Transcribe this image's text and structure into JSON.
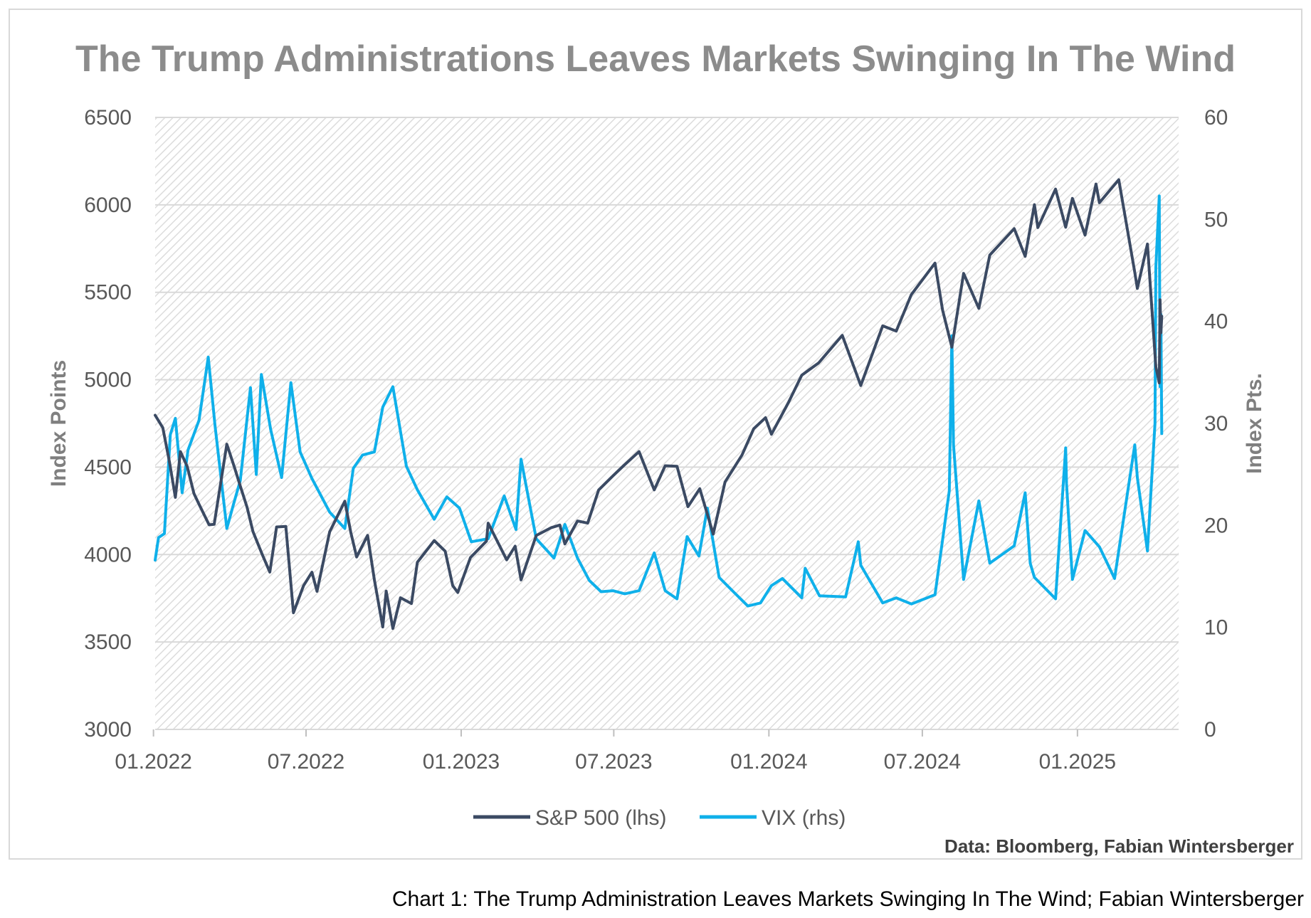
{
  "chart_data": {
    "type": "line",
    "title": "The Trump Administrations Leaves Markets Swinging In The Wind",
    "ylabel": "Index Points",
    "y2label": "Index Pts.",
    "ylim": [
      3000,
      6500
    ],
    "y2lim": [
      0,
      60
    ],
    "yticks": [
      "3000",
      "3500",
      "4000",
      "4500",
      "5000",
      "5500",
      "6000",
      "6500"
    ],
    "y2ticks": [
      "0",
      "10",
      "20",
      "30",
      "40",
      "50",
      "60"
    ],
    "xticks": [
      "01.2022",
      "07.2022",
      "01.2023",
      "07.2023",
      "01.2024",
      "07.2024",
      "01.2025"
    ],
    "x_start": "2022-01-03",
    "x_end": "2025-04-11",
    "grid": "horizontal",
    "legend_position": "bottom",
    "source_note": "Data: Bloomberg, Fabian Wintersberger",
    "colors": {
      "sp500": "#3b4a63",
      "vix": "#0fb0ea",
      "grid": "#d9d9d9",
      "hatch": "#dcdcdc"
    },
    "series": [
      {
        "name": "S&P 500 (lhs)",
        "axis": "left",
        "points": [
          [
            "2022-01-03",
            4797
          ],
          [
            "2022-01-12",
            4726
          ],
          [
            "2022-01-20",
            4530
          ],
          [
            "2022-01-27",
            4327
          ],
          [
            "2022-02-02",
            4589
          ],
          [
            "2022-02-10",
            4504
          ],
          [
            "2022-02-18",
            4349
          ],
          [
            "2022-02-24",
            4288
          ],
          [
            "2022-03-08",
            4170
          ],
          [
            "2022-03-14",
            4173
          ],
          [
            "2022-03-29",
            4631
          ],
          [
            "2022-04-07",
            4500
          ],
          [
            "2022-04-14",
            4392
          ],
          [
            "2022-04-22",
            4271
          ],
          [
            "2022-04-29",
            4132
          ],
          [
            "2022-05-10",
            4001
          ],
          [
            "2022-05-19",
            3900
          ],
          [
            "2022-05-27",
            4158
          ],
          [
            "2022-06-07",
            4161
          ],
          [
            "2022-06-16",
            3667
          ],
          [
            "2022-06-28",
            3822
          ],
          [
            "2022-07-08",
            3899
          ],
          [
            "2022-07-14",
            3790
          ],
          [
            "2022-07-29",
            4130
          ],
          [
            "2022-08-16",
            4305
          ],
          [
            "2022-08-23",
            4128
          ],
          [
            "2022-08-30",
            3986
          ],
          [
            "2022-09-12",
            4110
          ],
          [
            "2022-09-20",
            3856
          ],
          [
            "2022-09-30",
            3586
          ],
          [
            "2022-10-04",
            3791
          ],
          [
            "2022-10-12",
            3577
          ],
          [
            "2022-10-21",
            3753
          ],
          [
            "2022-11-03",
            3720
          ],
          [
            "2022-11-10",
            3956
          ],
          [
            "2022-11-30",
            4080
          ],
          [
            "2022-12-13",
            4019
          ],
          [
            "2022-12-22",
            3822
          ],
          [
            "2022-12-28",
            3783
          ],
          [
            "2023-01-12",
            3983
          ],
          [
            "2023-01-31",
            4077
          ],
          [
            "2023-02-02",
            4180
          ],
          [
            "2023-02-24",
            3970
          ],
          [
            "2023-03-06",
            4048
          ],
          [
            "2023-03-13",
            3855
          ],
          [
            "2023-03-31",
            4109
          ],
          [
            "2023-04-18",
            4154
          ],
          [
            "2023-04-28",
            4169
          ],
          [
            "2023-05-04",
            4061
          ],
          [
            "2023-05-19",
            4192
          ],
          [
            "2023-05-31",
            4180
          ],
          [
            "2023-06-13",
            4369
          ],
          [
            "2023-06-30",
            4450
          ],
          [
            "2023-07-13",
            4510
          ],
          [
            "2023-07-31",
            4589
          ],
          [
            "2023-08-18",
            4370
          ],
          [
            "2023-08-31",
            4508
          ],
          [
            "2023-09-14",
            4505
          ],
          [
            "2023-09-27",
            4274
          ],
          [
            "2023-10-11",
            4377
          ],
          [
            "2023-10-27",
            4117
          ],
          [
            "2023-11-10",
            4415
          ],
          [
            "2023-11-30",
            4568
          ],
          [
            "2023-12-14",
            4720
          ],
          [
            "2023-12-28",
            4783
          ],
          [
            "2024-01-04",
            4688
          ],
          [
            "2024-01-24",
            4868
          ],
          [
            "2024-02-09",
            5026
          ],
          [
            "2024-02-29",
            5096
          ],
          [
            "2024-03-28",
            5254
          ],
          [
            "2024-04-19",
            4967
          ],
          [
            "2024-05-15",
            5308
          ],
          [
            "2024-05-31",
            5278
          ],
          [
            "2024-06-18",
            5487
          ],
          [
            "2024-07-16",
            5667
          ],
          [
            "2024-07-25",
            5399
          ],
          [
            "2024-08-05",
            5186
          ],
          [
            "2024-08-19",
            5608
          ],
          [
            "2024-09-06",
            5408
          ],
          [
            "2024-09-19",
            5713
          ],
          [
            "2024-10-18",
            5864
          ],
          [
            "2024-10-31",
            5705
          ],
          [
            "2024-11-11",
            6001
          ],
          [
            "2024-11-15",
            5870
          ],
          [
            "2024-12-06",
            6090
          ],
          [
            "2024-12-18",
            5872
          ],
          [
            "2024-12-26",
            6037
          ],
          [
            "2025-01-10",
            5827
          ],
          [
            "2025-01-23",
            6119
          ],
          [
            "2025-01-27",
            6012
          ],
          [
            "2025-02-19",
            6144
          ],
          [
            "2025-03-10",
            5614
          ],
          [
            "2025-03-13",
            5522
          ],
          [
            "2025-03-25",
            5776
          ],
          [
            "2025-04-04",
            5074
          ],
          [
            "2025-04-08",
            4982
          ],
          [
            "2025-04-09",
            5457
          ],
          [
            "2025-04-10",
            5268
          ],
          [
            "2025-04-11",
            5363
          ]
        ]
      },
      {
        "name": "VIX (rhs)",
        "axis": "right",
        "points": [
          [
            "2022-01-03",
            16.6
          ],
          [
            "2022-01-07",
            18.8
          ],
          [
            "2022-01-14",
            19.2
          ],
          [
            "2022-01-21",
            28.9
          ],
          [
            "2022-01-27",
            30.5
          ],
          [
            "2022-02-04",
            23.2
          ],
          [
            "2022-02-11",
            27.4
          ],
          [
            "2022-02-24",
            30.3
          ],
          [
            "2022-03-07",
            36.5
          ],
          [
            "2022-03-15",
            29.8
          ],
          [
            "2022-03-29",
            19.7
          ],
          [
            "2022-04-06",
            22.1
          ],
          [
            "2022-04-14",
            24.4
          ],
          [
            "2022-04-26",
            33.5
          ],
          [
            "2022-05-03",
            25.0
          ],
          [
            "2022-05-09",
            34.8
          ],
          [
            "2022-05-20",
            29.4
          ],
          [
            "2022-06-02",
            24.7
          ],
          [
            "2022-06-13",
            34.0
          ],
          [
            "2022-06-24",
            27.2
          ],
          [
            "2022-07-08",
            24.6
          ],
          [
            "2022-07-29",
            21.3
          ],
          [
            "2022-08-16",
            19.7
          ],
          [
            "2022-08-26",
            25.6
          ],
          [
            "2022-09-06",
            26.9
          ],
          [
            "2022-09-20",
            27.2
          ],
          [
            "2022-09-30",
            31.6
          ],
          [
            "2022-10-12",
            33.6
          ],
          [
            "2022-10-28",
            25.8
          ],
          [
            "2022-11-10",
            23.5
          ],
          [
            "2022-11-30",
            20.6
          ],
          [
            "2022-12-15",
            22.8
          ],
          [
            "2022-12-30",
            21.7
          ],
          [
            "2023-01-13",
            18.4
          ],
          [
            "2023-02-02",
            18.7
          ],
          [
            "2023-02-21",
            22.9
          ],
          [
            "2023-03-07",
            19.6
          ],
          [
            "2023-03-13",
            26.5
          ],
          [
            "2023-03-31",
            18.7
          ],
          [
            "2023-04-21",
            16.8
          ],
          [
            "2023-05-04",
            20.1
          ],
          [
            "2023-05-19",
            16.8
          ],
          [
            "2023-06-02",
            14.6
          ],
          [
            "2023-06-16",
            13.5
          ],
          [
            "2023-06-30",
            13.6
          ],
          [
            "2023-07-14",
            13.3
          ],
          [
            "2023-07-31",
            13.6
          ],
          [
            "2023-08-18",
            17.3
          ],
          [
            "2023-08-31",
            13.6
          ],
          [
            "2023-09-14",
            12.8
          ],
          [
            "2023-09-26",
            18.9
          ],
          [
            "2023-10-10",
            17.0
          ],
          [
            "2023-10-20",
            21.7
          ],
          [
            "2023-11-03",
            14.9
          ],
          [
            "2023-11-21",
            13.4
          ],
          [
            "2023-12-07",
            12.1
          ],
          [
            "2023-12-22",
            12.4
          ],
          [
            "2024-01-04",
            14.1
          ],
          [
            "2024-01-17",
            14.8
          ],
          [
            "2024-02-09",
            12.9
          ],
          [
            "2024-02-13",
            15.8
          ],
          [
            "2024-03-01",
            13.1
          ],
          [
            "2024-04-01",
            13.0
          ],
          [
            "2024-04-16",
            18.4
          ],
          [
            "2024-04-19",
            16.1
          ],
          [
            "2024-05-15",
            12.4
          ],
          [
            "2024-05-31",
            12.9
          ],
          [
            "2024-06-18",
            12.3
          ],
          [
            "2024-07-16",
            13.2
          ],
          [
            "2024-07-24",
            18.0
          ],
          [
            "2024-08-02",
            23.4
          ],
          [
            "2024-08-05",
            38.6
          ],
          [
            "2024-08-07",
            27.9
          ],
          [
            "2024-08-19",
            14.7
          ],
          [
            "2024-09-06",
            22.4
          ],
          [
            "2024-09-19",
            16.3
          ],
          [
            "2024-10-18",
            18.0
          ],
          [
            "2024-10-31",
            23.2
          ],
          [
            "2024-11-06",
            16.3
          ],
          [
            "2024-11-11",
            14.9
          ],
          [
            "2024-12-06",
            12.8
          ],
          [
            "2024-12-18",
            27.6
          ],
          [
            "2024-12-19",
            24.1
          ],
          [
            "2024-12-26",
            14.7
          ],
          [
            "2025-01-10",
            19.5
          ],
          [
            "2025-01-27",
            17.9
          ],
          [
            "2025-02-14",
            14.8
          ],
          [
            "2025-03-10",
            27.9
          ],
          [
            "2025-03-13",
            24.7
          ],
          [
            "2025-03-25",
            17.5
          ],
          [
            "2025-04-03",
            30.0
          ],
          [
            "2025-04-04",
            45.3
          ],
          [
            "2025-04-08",
            52.3
          ],
          [
            "2025-04-09",
            33.6
          ],
          [
            "2025-04-10",
            40.7
          ],
          [
            "2025-04-11",
            29.0
          ]
        ]
      }
    ]
  },
  "caption": "Chart 1: The Trump Administration Leaves Markets Swinging In The Wind; Fabian Wintersberger"
}
